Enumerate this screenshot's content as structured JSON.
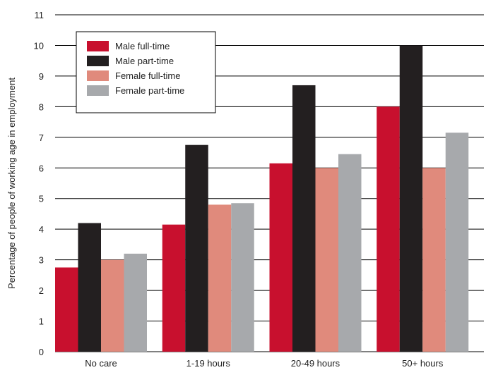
{
  "chart_data": {
    "type": "bar",
    "title": "",
    "xlabel": "",
    "ylabel": "Percentage of people of working age in employment",
    "categories": [
      "No care",
      "1-19 hours",
      "20-49 hours",
      "50+ hours"
    ],
    "ylim": [
      0,
      11
    ],
    "yticks": [
      "0",
      "1",
      "2",
      "3",
      "4",
      "5",
      "6",
      "7",
      "8",
      "9",
      "10",
      "11"
    ],
    "grid": "horizontal",
    "legend_position": "top-left",
    "series": [
      {
        "name": "Male full-time",
        "color": "#c8102e",
        "values": [
          2.75,
          4.15,
          6.15,
          8.0
        ]
      },
      {
        "name": "Male part-time",
        "color": "#231f20",
        "values": [
          4.2,
          6.75,
          8.7,
          10.0
        ]
      },
      {
        "name": "Female full-time",
        "color": "#e08a7c",
        "values": [
          3.0,
          4.8,
          6.0,
          6.0
        ]
      },
      {
        "name": "Female part-time",
        "color": "#a7a9ac",
        "values": [
          3.2,
          4.85,
          6.45,
          7.15
        ]
      }
    ]
  }
}
